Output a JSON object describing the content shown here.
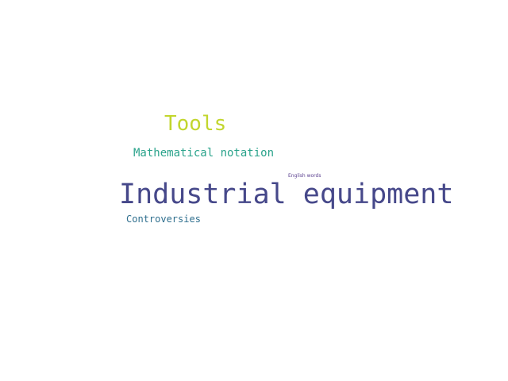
{
  "word_cloud": {
    "words": [
      {
        "text": "Industrial equipment",
        "color": "#46488a"
      },
      {
        "text": "Tools",
        "color": "#c2d62e"
      },
      {
        "text": "Mathematical notation",
        "color": "#2aa38b"
      },
      {
        "text": "Controversies",
        "color": "#2f6f8e"
      },
      {
        "text": "English words",
        "color": "#5a3f8f"
      }
    ]
  }
}
